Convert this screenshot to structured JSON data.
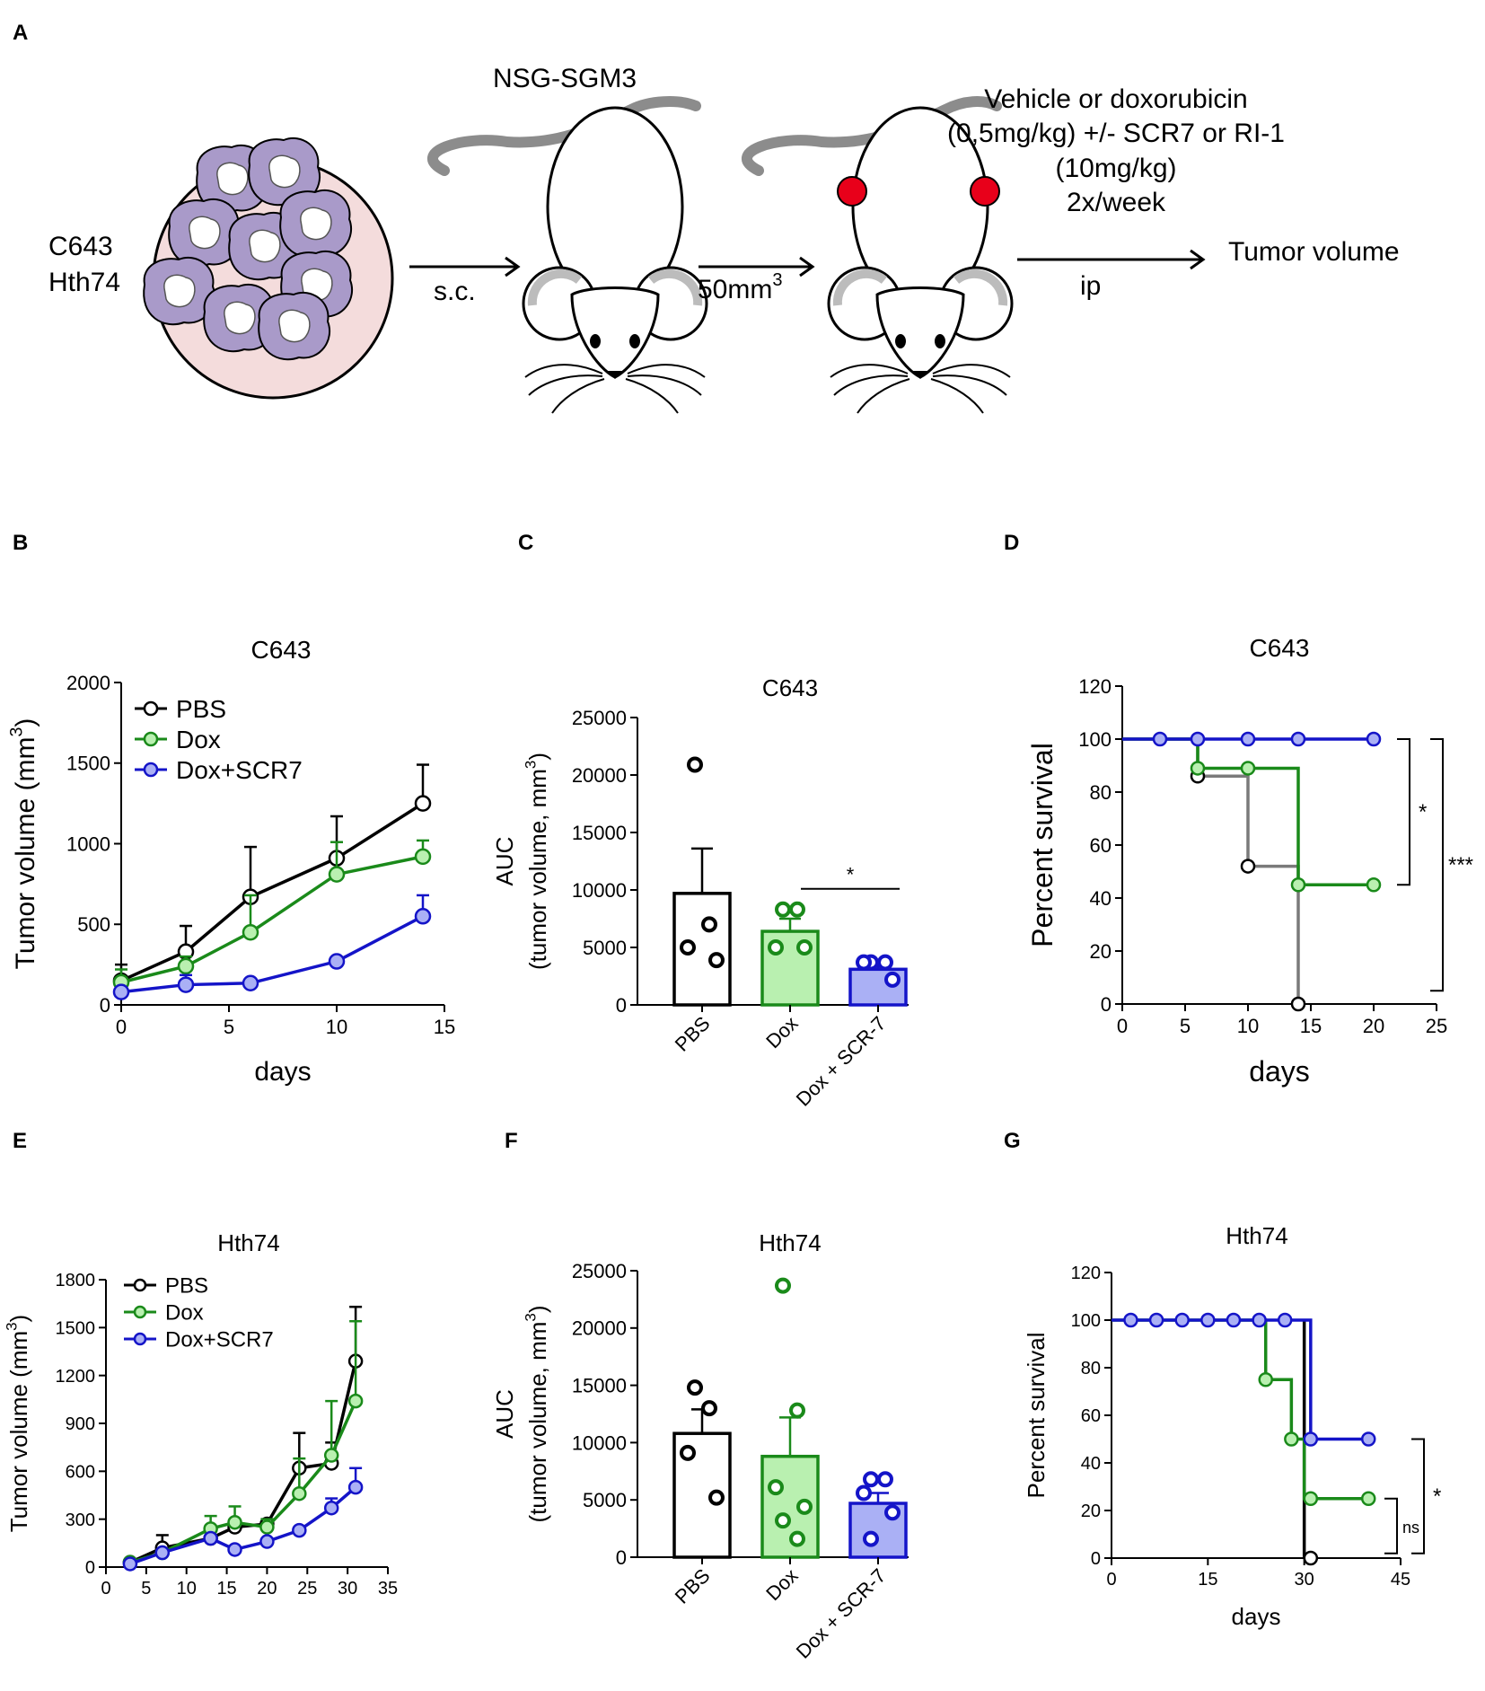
{
  "panel_labels": [
    "A",
    "B",
    "C",
    "D",
    "E",
    "F",
    "G"
  ],
  "schematic": {
    "cell_lines": [
      "C643",
      "Hth74"
    ],
    "route1": "s.c.",
    "strain": "NSG-SGM3",
    "size_prefix": "50mm",
    "size_sup": "3",
    "treatment": [
      "Vehicle or doxorubicin",
      "(0,5mg/kg) +/- SCR7 or RI-1",
      "(10mg/kg)",
      "2x/week"
    ],
    "route2": "ip",
    "readout": "Tumor volume"
  },
  "colors": {
    "black": "#000000",
    "green": "#1a8a1a",
    "green_fill": "#b9f0b0",
    "blue": "#1414c8",
    "blue_fill": "#aab0f5",
    "gray": "#7a7a7a",
    "red": "#e8001a",
    "dish": "#f4dcdc",
    "cell": "#a99ac9"
  },
  "chart_data": [
    {
      "id": "B",
      "type": "line",
      "title": "C643",
      "xlabel": "days",
      "ylabel": "Tumor volume (mm",
      "ylabel_sup": "3",
      "ylabel_end": ")",
      "xlim": [
        0,
        15
      ],
      "ylim": [
        0,
        2000
      ],
      "xticks": [
        0,
        5,
        10,
        15
      ],
      "yticks": [
        0,
        500,
        1000,
        1500,
        2000
      ],
      "x": [
        0,
        3,
        6,
        10,
        14
      ],
      "series": [
        {
          "name": "PBS",
          "color": "#000000",
          "fill": "#ffffff",
          "values": [
            150,
            330,
            670,
            910,
            1250
          ],
          "errors": [
            100,
            160,
            310,
            260,
            240
          ]
        },
        {
          "name": "Dox",
          "color": "#1a8a1a",
          "fill": "#b9f0b0",
          "values": [
            140,
            240,
            450,
            810,
            920
          ],
          "errors": [
            80,
            60,
            230,
            200,
            100
          ]
        },
        {
          "name": "Dox+SCR7",
          "color": "#1414c8",
          "fill": "#aab0f5",
          "values": [
            80,
            125,
            135,
            270,
            550
          ],
          "errors": [
            0,
            60,
            0,
            0,
            130
          ]
        }
      ]
    },
    {
      "id": "C",
      "type": "bar",
      "title": "C643",
      "ylabel": "AUC",
      "ylabel2": "(tumor volume, mm",
      "ylabel_sup": "3",
      "ylabel_end": ")",
      "ylim": [
        0,
        25000
      ],
      "yticks": [
        0,
        5000,
        10000,
        15000,
        20000,
        25000
      ],
      "categories": [
        "PBS",
        "Dox",
        "Dox + SCR-7"
      ],
      "values": [
        9700,
        6400,
        3100
      ],
      "errors": [
        3900,
        1100,
        500
      ],
      "colors": [
        "#000000",
        "#1a8a1a",
        "#1414c8"
      ],
      "fills": [
        "#ffffff",
        "#b9f0b0",
        "#aab0f5"
      ],
      "points": [
        [
          20900,
          7000,
          5000,
          3900
        ],
        [
          8300,
          8300,
          5000,
          5000
        ],
        [
          3700,
          3700,
          3700,
          2200
        ]
      ],
      "sig": [
        {
          "from": 1,
          "to": 2,
          "label": "*",
          "y": 10100
        }
      ]
    },
    {
      "id": "D",
      "type": "line",
      "title": "C643",
      "xlabel": "days",
      "ylabel": "Percent survival",
      "xlim": [
        0,
        25
      ],
      "ylim": [
        0,
        120
      ],
      "xticks": [
        0,
        5,
        10,
        15,
        20,
        25
      ],
      "yticks": [
        0,
        20,
        40,
        60,
        80,
        100,
        120
      ],
      "series": [
        {
          "name": "PBS",
          "color": "#7a7a7a",
          "fill": "#ffffff",
          "steps": [
            [
              0,
              100
            ],
            [
              6,
              100
            ],
            [
              6,
              86
            ],
            [
              10,
              86
            ],
            [
              10,
              52
            ],
            [
              14,
              52
            ],
            [
              14,
              0
            ]
          ],
          "markers": [
            [
              6,
              86
            ],
            [
              10,
              52
            ],
            [
              14,
              0
            ]
          ]
        },
        {
          "name": "Dox",
          "color": "#1a8a1a",
          "fill": "#b9f0b0",
          "steps": [
            [
              0,
              100
            ],
            [
              6,
              100
            ],
            [
              6,
              89
            ],
            [
              14,
              89
            ],
            [
              14,
              45
            ],
            [
              20,
              45
            ]
          ],
          "markers": [
            [
              6,
              89
            ],
            [
              10,
              89
            ],
            [
              14,
              45
            ],
            [
              20,
              45
            ]
          ]
        },
        {
          "name": "Dox+SCR7",
          "color": "#1414c8",
          "fill": "#aab0f5",
          "steps": [
            [
              0,
              100
            ],
            [
              20,
              100
            ]
          ],
          "markers": [
            [
              3,
              100
            ],
            [
              6,
              100
            ],
            [
              10,
              100
            ],
            [
              14,
              100
            ],
            [
              20,
              100
            ]
          ]
        }
      ],
      "sig": [
        {
          "label": "*",
          "y1": 100,
          "y2": 45,
          "pos": "inner"
        },
        {
          "label": "***",
          "y1": 100,
          "y2": 5,
          "pos": "outer"
        }
      ]
    },
    {
      "id": "E",
      "type": "line",
      "title": "Hth74",
      "xlabel": "",
      "ylabel": "Tumor volume (mm",
      "ylabel_sup": "3",
      "ylabel_end": ")",
      "xlim": [
        0,
        35
      ],
      "ylim": [
        0,
        1800
      ],
      "xticks": [
        0,
        5,
        10,
        15,
        20,
        25,
        30,
        35
      ],
      "yticks": [
        0,
        300,
        600,
        900,
        1200,
        1500,
        1800
      ],
      "series": [
        {
          "name": "PBS",
          "color": "#000000",
          "fill": "#ffffff",
          "x": [
            3,
            7,
            13,
            16,
            20,
            24,
            28,
            31
          ],
          "values": [
            30,
            120,
            180,
            250,
            270,
            620,
            650,
            1290
          ],
          "errors": [
            0,
            80,
            0,
            0,
            30,
            220,
            130,
            340
          ]
        },
        {
          "name": "Dox",
          "color": "#1a8a1a",
          "fill": "#b9f0b0",
          "x": [
            3,
            7,
            13,
            16,
            20,
            24,
            28,
            31
          ],
          "values": [
            30,
            90,
            240,
            280,
            250,
            460,
            700,
            1040
          ],
          "errors": [
            0,
            0,
            80,
            100,
            50,
            220,
            340,
            500
          ]
        },
        {
          "name": "Dox+SCR7",
          "color": "#1414c8",
          "fill": "#aab0f5",
          "x": [
            3,
            7,
            13,
            16,
            20,
            24,
            28,
            31
          ],
          "values": [
            20,
            90,
            180,
            110,
            160,
            230,
            370,
            500
          ],
          "errors": [
            0,
            0,
            0,
            0,
            0,
            0,
            60,
            120
          ]
        }
      ]
    },
    {
      "id": "F",
      "type": "bar",
      "title": "Hth74",
      "ylabel": "AUC",
      "ylabel2": "(tumor volume, mm",
      "ylabel_sup": "3",
      "ylabel_end": ")",
      "ylim": [
        0,
        25000
      ],
      "yticks": [
        0,
        5000,
        10000,
        15000,
        20000,
        25000
      ],
      "categories": [
        "PBS",
        "Dox",
        "Dox + SCR-7"
      ],
      "values": [
        10800,
        8800,
        4700
      ],
      "errors": [
        2100,
        3400,
        900
      ],
      "colors": [
        "#000000",
        "#1a8a1a",
        "#1414c8"
      ],
      "fills": [
        "#ffffff",
        "#b9f0b0",
        "#aab0f5"
      ],
      "points": [
        [
          14800,
          13000,
          9100,
          5200
        ],
        [
          23700,
          12800,
          6100,
          4400,
          3200,
          1600
        ],
        [
          6800,
          6800,
          5600,
          3900,
          1600
        ]
      ],
      "sig": []
    },
    {
      "id": "G",
      "type": "line",
      "title": "Hth74",
      "xlabel": "days",
      "ylabel": "Percent survival",
      "xlim": [
        0,
        45
      ],
      "ylim": [
        0,
        120
      ],
      "xticks": [
        0,
        15,
        30,
        45
      ],
      "yticks": [
        0,
        20,
        40,
        60,
        80,
        100,
        120
      ],
      "series": [
        {
          "name": "PBS",
          "color": "#000000",
          "fill": "#ffffff",
          "steps": [
            [
              30,
              100
            ],
            [
              30,
              0
            ]
          ],
          "markers": [
            [
              31,
              0
            ]
          ]
        },
        {
          "name": "Dox",
          "color": "#1a8a1a",
          "fill": "#b9f0b0",
          "steps": [
            [
              0,
              100
            ],
            [
              24,
              100
            ],
            [
              24,
              75
            ],
            [
              28,
              75
            ],
            [
              28,
              50
            ],
            [
              30,
              50
            ],
            [
              30,
              25
            ],
            [
              40,
              25
            ]
          ],
          "markers": [
            [
              24,
              75
            ],
            [
              28,
              50
            ],
            [
              31,
              25
            ],
            [
              40,
              25
            ]
          ]
        },
        {
          "name": "Dox+SCR7",
          "color": "#1414c8",
          "fill": "#aab0f5",
          "steps": [
            [
              0,
              100
            ],
            [
              31,
              100
            ],
            [
              31,
              50
            ],
            [
              40,
              50
            ]
          ],
          "markers": [
            [
              3,
              100
            ],
            [
              7,
              100
            ],
            [
              11,
              100
            ],
            [
              15,
              100
            ],
            [
              19,
              100
            ],
            [
              23,
              100
            ],
            [
              27,
              100
            ],
            [
              31,
              50
            ],
            [
              40,
              50
            ]
          ]
        }
      ],
      "sig": [
        {
          "label": "ns",
          "y1": 25,
          "y2": 2,
          "pos": "inner"
        },
        {
          "label": "*",
          "y1": 50,
          "y2": 2,
          "pos": "outer"
        }
      ]
    }
  ]
}
